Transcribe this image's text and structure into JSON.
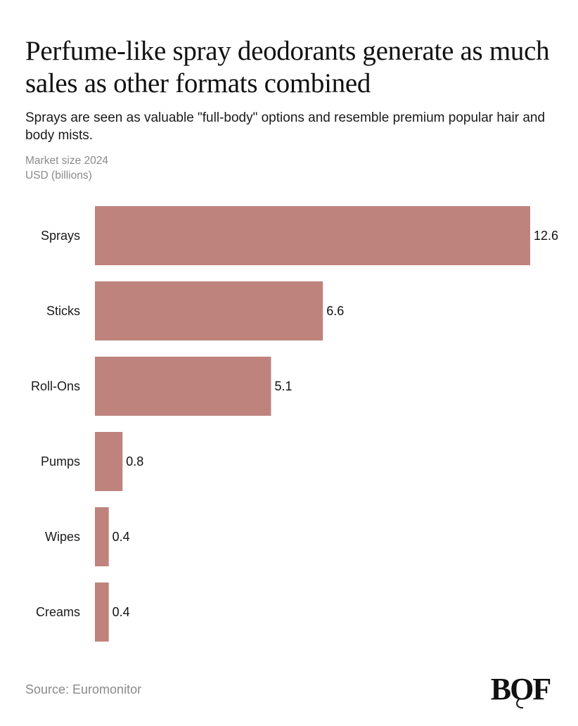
{
  "chart_data": {
    "type": "bar",
    "orientation": "horizontal",
    "title": "Perfume-like spray deodorants generate as much sales as other formats combined",
    "subtitle": "Sprays are seen as valuable \"full-body\" options and resemble premium popular hair and body mists.",
    "axis_label_line1": "Market size 2024",
    "axis_label_line2": "USD (billions)",
    "categories": [
      "Sprays",
      "Sticks",
      "Roll-Ons",
      "Pumps",
      "Wipes",
      "Creams"
    ],
    "values": [
      12.6,
      6.6,
      5.1,
      0.8,
      0.4,
      0.4
    ],
    "value_labels": [
      "12.6",
      "6.6",
      "5.1",
      "0.8",
      "0.4",
      "0.4"
    ],
    "xlim": [
      0,
      12.6
    ],
    "grid": false,
    "legend": "none",
    "bar_color": "#bf837d",
    "source": "Source: Euromonitor"
  },
  "brand": {
    "logo_text": "BOF"
  }
}
